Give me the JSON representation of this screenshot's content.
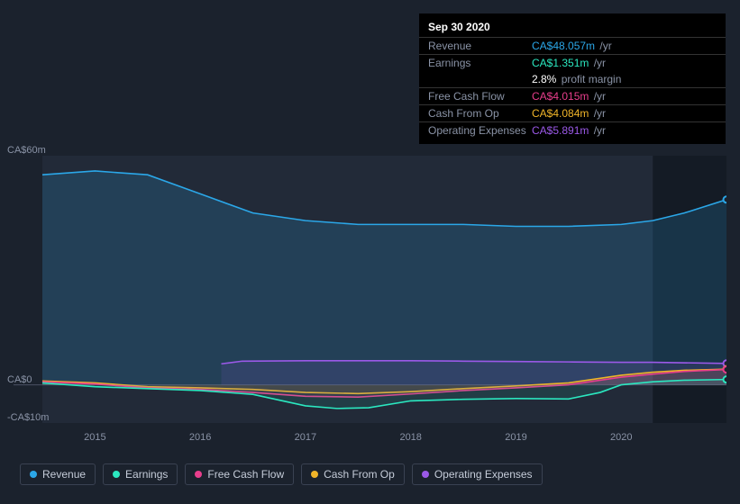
{
  "tooltip": {
    "date": "Sep 30 2020",
    "rows": [
      {
        "label": "Revenue",
        "value": "CA$48.057m",
        "color": "#2ba7e8",
        "suffix": "/yr"
      },
      {
        "label": "Earnings",
        "value": "CA$1.351m",
        "color": "#2be8c0",
        "suffix": "/yr"
      },
      {
        "label": "",
        "value": "2.8%",
        "color": "#ffffff",
        "suffix": "profit margin",
        "noborder": true
      },
      {
        "label": "Free Cash Flow",
        "value": "CA$4.015m",
        "color": "#e83e8c",
        "suffix": "/yr"
      },
      {
        "label": "Cash From Op",
        "value": "CA$4.084m",
        "color": "#f0b429",
        "suffix": "/yr"
      },
      {
        "label": "Operating Expenses",
        "value": "CA$5.891m",
        "color": "#9b59e8",
        "suffix": "/yr"
      }
    ]
  },
  "chart": {
    "type": "area",
    "background_color": "#1b222d",
    "y": {
      "domain": [
        -10,
        60
      ],
      "ticks": [
        {
          "v": 60,
          "label": "CA$60m"
        },
        {
          "v": 0,
          "label": "CA$0"
        },
        {
          "v": -10,
          "label": "-CA$10m"
        }
      ]
    },
    "x": {
      "domain": [
        2014.5,
        2021.0
      ],
      "ticks": [
        2015,
        2016,
        2017,
        2018,
        2019,
        2020
      ]
    },
    "zero_line_color": "#4a5163",
    "future_band_start": 2020.3,
    "future_band_color": "rgba(10,14,22,0.55)",
    "plot_area_bg": "#222a38",
    "series": [
      {
        "name": "Revenue",
        "color": "#2ba7e8",
        "fill_opacity": 0.18,
        "points": [
          [
            2014.5,
            55
          ],
          [
            2015,
            56
          ],
          [
            2015.5,
            55
          ],
          [
            2016,
            50
          ],
          [
            2016.5,
            45
          ],
          [
            2017,
            43
          ],
          [
            2017.5,
            42
          ],
          [
            2018,
            42
          ],
          [
            2018.5,
            42
          ],
          [
            2019,
            41.5
          ],
          [
            2019.5,
            41.5
          ],
          [
            2020,
            42
          ],
          [
            2020.3,
            43
          ],
          [
            2020.6,
            45
          ],
          [
            2021.0,
            48.5
          ]
        ]
      },
      {
        "name": "Operating Expenses",
        "color": "#9b59e8",
        "fill_opacity": 0.12,
        "points": [
          [
            2016.2,
            5.5
          ],
          [
            2016.4,
            6.2
          ],
          [
            2017,
            6.3
          ],
          [
            2017.5,
            6.3
          ],
          [
            2018,
            6.3
          ],
          [
            2018.5,
            6.2
          ],
          [
            2019,
            6.1
          ],
          [
            2019.5,
            6.0
          ],
          [
            2020,
            5.9
          ],
          [
            2020.3,
            5.9
          ],
          [
            2021.0,
            5.6
          ]
        ]
      },
      {
        "name": "Cash From Op",
        "color": "#f0b429",
        "fill_opacity": 0.1,
        "points": [
          [
            2014.5,
            1.0
          ],
          [
            2015,
            0.5
          ],
          [
            2015.5,
            -0.5
          ],
          [
            2016,
            -0.8
          ],
          [
            2016.5,
            -1.2
          ],
          [
            2017,
            -2.0
          ],
          [
            2017.5,
            -2.3
          ],
          [
            2018,
            -1.8
          ],
          [
            2018.5,
            -1.0
          ],
          [
            2019,
            -0.3
          ],
          [
            2019.5,
            0.5
          ],
          [
            2020,
            2.5
          ],
          [
            2020.3,
            3.3
          ],
          [
            2020.6,
            3.8
          ],
          [
            2021.0,
            4.1
          ]
        ]
      },
      {
        "name": "Free Cash Flow",
        "color": "#e83e8c",
        "fill_opacity": 0.1,
        "points": [
          [
            2014.5,
            0.8
          ],
          [
            2015,
            0.2
          ],
          [
            2015.5,
            -0.8
          ],
          [
            2016,
            -1.2
          ],
          [
            2016.5,
            -2.0
          ],
          [
            2017,
            -3.0
          ],
          [
            2017.5,
            -3.2
          ],
          [
            2018,
            -2.4
          ],
          [
            2018.5,
            -1.5
          ],
          [
            2019,
            -0.8
          ],
          [
            2019.5,
            0.0
          ],
          [
            2020,
            2.0
          ],
          [
            2020.3,
            2.8
          ],
          [
            2020.6,
            3.5
          ],
          [
            2021.0,
            4.0
          ]
        ]
      },
      {
        "name": "Earnings",
        "color": "#2be8c0",
        "fill_opacity": 0.1,
        "points": [
          [
            2014.5,
            0.5
          ],
          [
            2015,
            -0.5
          ],
          [
            2015.5,
            -1.0
          ],
          [
            2016,
            -1.5
          ],
          [
            2016.5,
            -2.5
          ],
          [
            2017,
            -5.5
          ],
          [
            2017.3,
            -6.2
          ],
          [
            2017.6,
            -6.0
          ],
          [
            2018,
            -4.2
          ],
          [
            2018.5,
            -3.8
          ],
          [
            2019,
            -3.6
          ],
          [
            2019.5,
            -3.7
          ],
          [
            2019.8,
            -2.0
          ],
          [
            2020,
            0.0
          ],
          [
            2020.3,
            0.8
          ],
          [
            2020.6,
            1.2
          ],
          [
            2021.0,
            1.4
          ]
        ]
      }
    ]
  },
  "legend": [
    {
      "label": "Revenue",
      "color": "#2ba7e8"
    },
    {
      "label": "Earnings",
      "color": "#2be8c0"
    },
    {
      "label": "Free Cash Flow",
      "color": "#e83e8c"
    },
    {
      "label": "Cash From Op",
      "color": "#f0b429"
    },
    {
      "label": "Operating Expenses",
      "color": "#9b59e8"
    }
  ]
}
